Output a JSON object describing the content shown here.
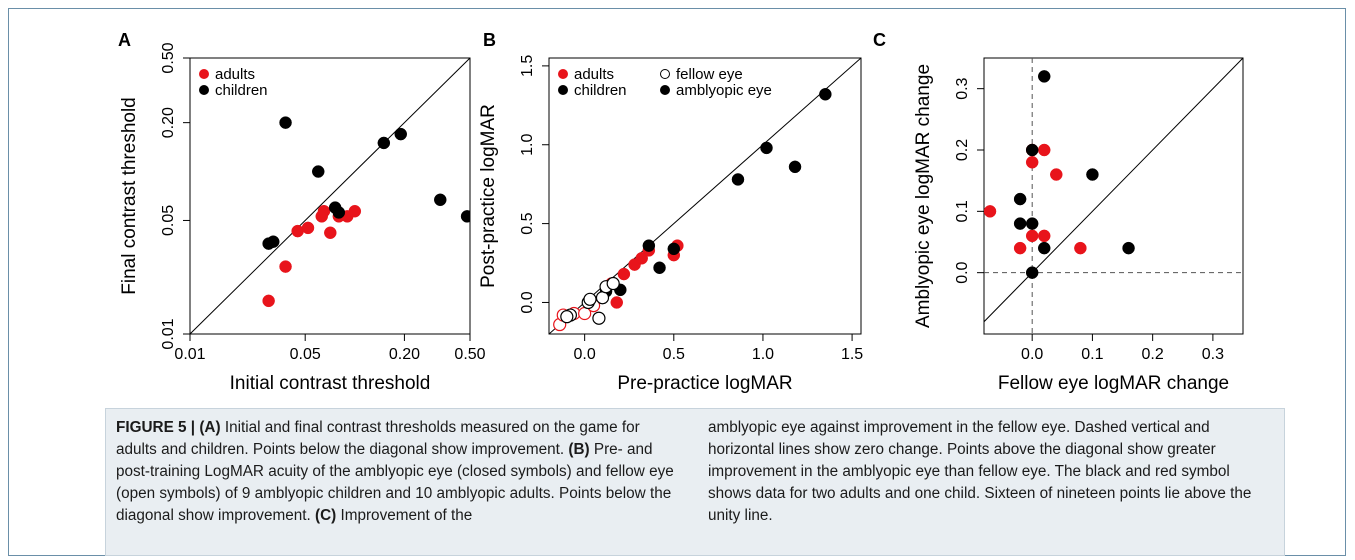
{
  "figure": {
    "panel_letters": [
      "A",
      "B",
      "C"
    ]
  },
  "chart_data": [
    {
      "type": "scatter",
      "panel": "A",
      "xlabel": "Initial contrast threshold",
      "ylabel": "Final contrast threshold",
      "xscale": "log",
      "yscale": "log",
      "xlim": [
        0.01,
        0.5
      ],
      "ylim": [
        0.01,
        0.5
      ],
      "xticks": [
        0.01,
        0.05,
        0.2,
        0.5
      ],
      "xtick_labels": [
        "0.01",
        "0.05",
        "0.20",
        "0.50"
      ],
      "yticks": [
        0.01,
        0.05,
        0.2,
        0.5
      ],
      "ytick_labels": [
        "0.01",
        "0.05",
        "0.20",
        "0.50"
      ],
      "diagonal": true,
      "legend_position": "top-left",
      "legend": [
        {
          "label": "adults",
          "color": "#e8141b"
        },
        {
          "label": "children",
          "color": "#000000"
        }
      ],
      "series": [
        {
          "name": "adults",
          "color": "#e8141b",
          "points": [
            [
              0.03,
              0.016
            ],
            [
              0.045,
              0.043
            ],
            [
              0.052,
              0.045
            ],
            [
              0.063,
              0.053
            ],
            [
              0.065,
              0.057
            ],
            [
              0.071,
              0.042
            ],
            [
              0.08,
              0.053
            ],
            [
              0.09,
              0.053
            ],
            [
              0.1,
              0.057
            ],
            [
              0.038,
              0.026
            ]
          ]
        },
        {
          "name": "children",
          "color": "#000000",
          "points": [
            [
              0.03,
              0.036
            ],
            [
              0.032,
              0.037
            ],
            [
              0.038,
              0.2
            ],
            [
              0.06,
              0.1
            ],
            [
              0.076,
              0.06
            ],
            [
              0.08,
              0.056
            ],
            [
              0.15,
              0.15
            ],
            [
              0.19,
              0.17
            ],
            [
              0.33,
              0.067
            ],
            [
              0.48,
              0.053
            ]
          ]
        }
      ]
    },
    {
      "type": "scatter",
      "panel": "B",
      "xlabel": "Pre-practice logMAR",
      "ylabel": "Post-practice logMAR",
      "xlim": [
        -0.2,
        1.55
      ],
      "ylim": [
        -0.2,
        1.55
      ],
      "xticks": [
        0.0,
        0.5,
        1.0,
        1.5
      ],
      "xtick_labels": [
        "0.0",
        "0.5",
        "1.0",
        "1.5"
      ],
      "yticks": [
        0.0,
        0.5,
        1.0,
        1.5
      ],
      "ytick_labels": [
        "0.0",
        "0.5",
        "1.0",
        "1.5"
      ],
      "diagonal": true,
      "legend_position": "top-left",
      "legend": [
        {
          "label": "adults",
          "color": "#e8141b",
          "filled": true
        },
        {
          "label": "children",
          "color": "#000000",
          "filled": true
        },
        {
          "label": "fellow eye",
          "color": "#000000",
          "filled": false
        },
        {
          "label": "amblyopic eye",
          "color": "#000000",
          "filled": true
        }
      ],
      "series": [
        {
          "group": "adults",
          "eye": "amblyopic",
          "color": "#e8141b",
          "filled": true,
          "points": [
            [
              0.15,
              0.12
            ],
            [
              0.18,
              0.0
            ],
            [
              0.22,
              0.18
            ],
            [
              0.28,
              0.24
            ],
            [
              0.32,
              0.28
            ],
            [
              0.36,
              0.33
            ],
            [
              0.5,
              0.3
            ],
            [
              0.52,
              0.36
            ]
          ]
        },
        {
          "group": "children",
          "eye": "amblyopic",
          "color": "#000000",
          "filled": true,
          "points": [
            [
              0.12,
              0.07
            ],
            [
              0.2,
              0.08
            ],
            [
              0.36,
              0.36
            ],
            [
              0.42,
              0.22
            ],
            [
              0.5,
              0.34
            ],
            [
              0.86,
              0.78
            ],
            [
              1.02,
              0.98
            ],
            [
              1.18,
              0.86
            ],
            [
              1.35,
              1.32
            ]
          ]
        },
        {
          "group": "adults",
          "eye": "fellow",
          "color": "#e8141b",
          "filled": false,
          "points": [
            [
              -0.14,
              -0.14
            ],
            [
              -0.12,
              -0.08
            ],
            [
              -0.06,
              -0.07
            ],
            [
              0.0,
              -0.07
            ],
            [
              0.05,
              -0.02
            ]
          ]
        },
        {
          "group": "children",
          "eye": "fellow",
          "color": "#000000",
          "filled": false,
          "points": [
            [
              -0.08,
              -0.08
            ],
            [
              -0.1,
              -0.09
            ],
            [
              0.02,
              0.0
            ],
            [
              0.03,
              0.02
            ],
            [
              0.08,
              -0.1
            ],
            [
              0.1,
              0.03
            ],
            [
              0.12,
              0.1
            ],
            [
              0.16,
              0.12
            ]
          ]
        }
      ]
    },
    {
      "type": "scatter",
      "panel": "C",
      "xlabel": "Fellow eye logMAR change",
      "ylabel": "Amblyopic eye logMAR change",
      "xlim": [
        -0.08,
        0.35
      ],
      "ylim": [
        -0.1,
        0.35
      ],
      "xticks": [
        0.0,
        0.1,
        0.2,
        0.3
      ],
      "xtick_labels": [
        "0.0",
        "0.1",
        "0.2",
        "0.3"
      ],
      "yticks": [
        0.0,
        0.1,
        0.2,
        0.3
      ],
      "ytick_labels": [
        "0.0",
        "0.1",
        "0.2",
        "0.3"
      ],
      "diagonal": true,
      "zero_lines_dashed": true,
      "series": [
        {
          "group": "adults",
          "color": "#e8141b",
          "points": [
            [
              -0.07,
              0.1
            ],
            [
              -0.02,
              0.04
            ],
            [
              0.0,
              0.06
            ],
            [
              0.0,
              0.18
            ],
            [
              0.02,
              0.2
            ],
            [
              0.02,
              0.06
            ],
            [
              0.04,
              0.16
            ],
            [
              0.08,
              0.04
            ],
            [
              0.0,
              0.2
            ]
          ]
        },
        {
          "group": "children",
          "color": "#000000",
          "points": [
            [
              -0.02,
              0.12
            ],
            [
              -0.02,
              0.08
            ],
            [
              0.0,
              0.08
            ],
            [
              0.0,
              0.0
            ],
            [
              0.0,
              0.2
            ],
            [
              0.02,
              0.32
            ],
            [
              0.02,
              0.04
            ],
            [
              0.1,
              0.16
            ],
            [
              0.16,
              0.04
            ]
          ]
        }
      ]
    }
  ],
  "caption": {
    "label": "FIGURE 5 | ",
    "left": [
      {
        "b": "(A)",
        "t": " Initial and final contrast thresholds measured on the game for adults and children. Points below the diagonal show improvement. "
      },
      {
        "b": "(B)",
        "t": " Pre- and post-training LogMAR acuity of the amblyopic eye (closed symbols) and fellow eye (open symbols) of 9 amblyopic children and 10 amblyopic adults. Points below the diagonal show improvement. "
      },
      {
        "b": "(C)",
        "t": " Improvement of the"
      }
    ],
    "right": "amblyopic eye against improvement in the fellow eye. Dashed vertical and horizontal lines show zero change. Points above the diagonal show greater improvement in the amblyopic eye than fellow eye. The black and red symbol shows data for two adults and one child. Sixteen of nineteen points lie above the unity line."
  }
}
